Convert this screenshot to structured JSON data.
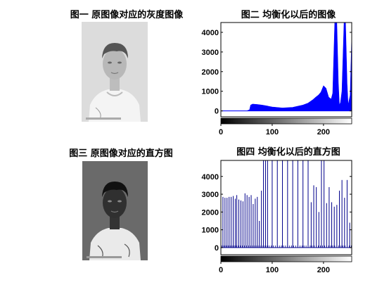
{
  "titles": {
    "t1": "图一 原图像对应的灰度图像",
    "t2": "图二 均衡化以后的图像",
    "t3": "图三 原图像对应的直方图",
    "t4": "图四 均衡化以后的直方图"
  },
  "colors": {
    "series_top": "#0000ff",
    "series_bottom": "#00008b"
  },
  "chart_data": [
    {
      "type": "area",
      "panel": "图二 均衡化以后的图像",
      "xlim": [
        0,
        255
      ],
      "ylim": [
        -300,
        4500
      ],
      "xticks": [
        0,
        100,
        200
      ],
      "yticks": [
        0,
        1000,
        2000,
        3000,
        4000
      ],
      "xtick_labels": [
        "0",
        "100",
        "200"
      ],
      "ytick_labels": [
        "0",
        "1000",
        "2000",
        "3000",
        "4000"
      ],
      "colorbar": "grayscale",
      "x": [
        0,
        50,
        56,
        58,
        62,
        70,
        80,
        90,
        100,
        120,
        140,
        160,
        170,
        180,
        185,
        190,
        195,
        200,
        205,
        210,
        215,
        218,
        222,
        226,
        229,
        231,
        233,
        236,
        240,
        243,
        246,
        248,
        252,
        255
      ],
      "y": [
        0,
        0,
        60,
        300,
        350,
        330,
        300,
        250,
        200,
        150,
        180,
        300,
        400,
        580,
        700,
        800,
        950,
        1280,
        1150,
        700,
        600,
        900,
        4500,
        4500,
        1400,
        300,
        420,
        1000,
        4500,
        4500,
        1400,
        300,
        800,
        3800
      ]
    },
    {
      "type": "bar",
      "panel": "图四 均衡化以后的直方图",
      "xlim": [
        0,
        255
      ],
      "ylim": [
        -400,
        4900
      ],
      "xticks": [
        0,
        100,
        200
      ],
      "yticks": [
        0,
        1000,
        2000,
        3000,
        4000
      ],
      "xtick_labels": [
        "0",
        "100",
        "200"
      ],
      "ytick_labels": [
        "0",
        "1000",
        "2000",
        "3000",
        "4000"
      ],
      "colorbar": "grayscale",
      "x": [
        0,
        4,
        8,
        12,
        16,
        20,
        24,
        28,
        31,
        35,
        39,
        43,
        47,
        51,
        55,
        59,
        63,
        67,
        71,
        75,
        79,
        83,
        87,
        91,
        100,
        110,
        120,
        130,
        140,
        150,
        160,
        170,
        176,
        181,
        186,
        191,
        196,
        201,
        206,
        211,
        216,
        221,
        226,
        231,
        236,
        241,
        246,
        251,
        255
      ],
      "y": [
        2900,
        2850,
        2800,
        2800,
        2850,
        2850,
        2900,
        2750,
        2950,
        2700,
        2650,
        2600,
        3050,
        2950,
        2850,
        2950,
        2450,
        2750,
        2850,
        1500,
        3200,
        4900,
        4900,
        4900,
        4900,
        4900,
        4900,
        4900,
        4900,
        4900,
        4900,
        4900,
        2550,
        3500,
        3400,
        2000,
        4900,
        4900,
        2500,
        3400,
        2550,
        2300,
        2400,
        3200,
        3800,
        2800,
        3800,
        1400,
        1400
      ]
    }
  ]
}
